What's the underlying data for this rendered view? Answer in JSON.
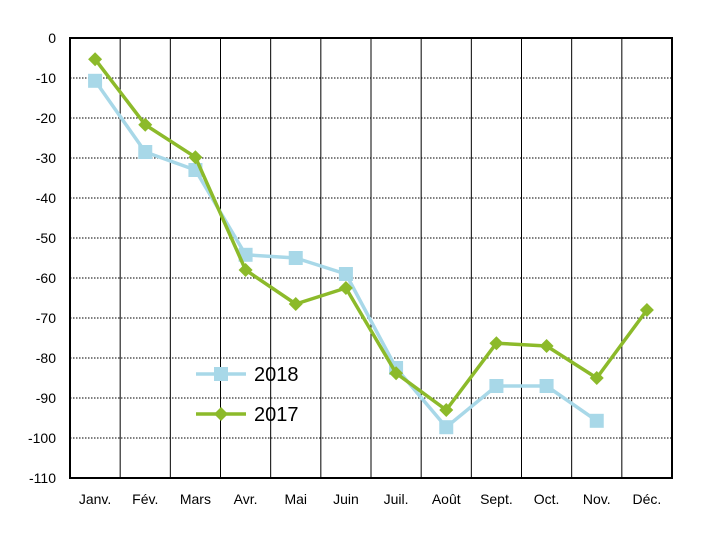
{
  "chart_data": {
    "type": "line",
    "title": "",
    "xlabel": "",
    "ylabel": "",
    "categories": [
      "Janv.",
      "Fév.",
      "Mars",
      "Avr.",
      "Mai",
      "Juin",
      "Juil.",
      "Août",
      "Sept.",
      "Oct.",
      "Nov.",
      "Déc."
    ],
    "ylim": [
      -110,
      0
    ],
    "yticks": [
      0,
      -10,
      -20,
      -30,
      -40,
      -50,
      -60,
      -70,
      -80,
      -90,
      -100,
      -110
    ],
    "grid": true,
    "legend_position": "bottom-left",
    "series": [
      {
        "name": "2018",
        "marker": "square",
        "color": "#a8d8e8",
        "values": [
          -10.7,
          -28.5,
          -33.0,
          -54.2,
          -55.0,
          -59.0,
          -82.5,
          -97.3,
          -87.0,
          -87.0,
          -95.7,
          null
        ]
      },
      {
        "name": "2017",
        "marker": "diamond",
        "color": "#8cba2a",
        "values": [
          -5.3,
          -21.7,
          -29.8,
          -58.0,
          -66.5,
          -62.5,
          -83.8,
          -93.0,
          -76.3,
          -77.0,
          -85.0,
          -68.0
        ]
      }
    ]
  }
}
